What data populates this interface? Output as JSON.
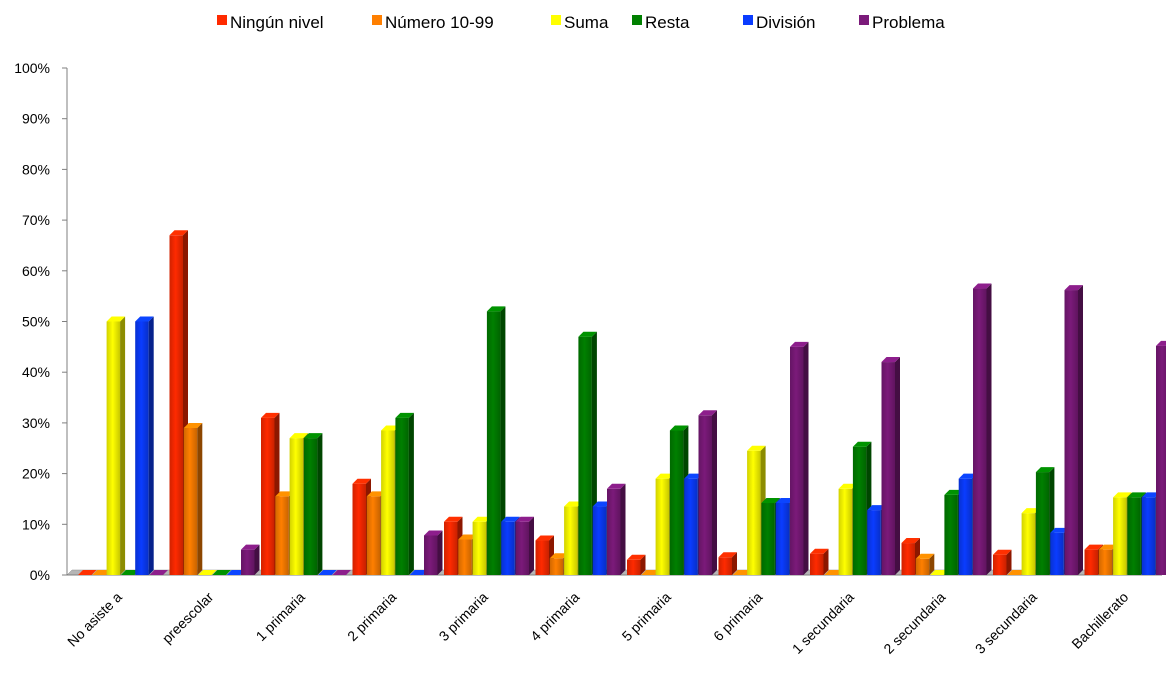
{
  "chart_data": {
    "type": "bar",
    "categories": [
      "No asiste a",
      "preescolar",
      "1 primaria",
      "2 primaria",
      "3 primaria",
      "4 primaria",
      "5 primaria",
      "6 primaria",
      "1 secundaria",
      "2 secundaria",
      "3 secundaria",
      "Bachillerato"
    ],
    "series": [
      {
        "name": "Ningún nivel",
        "color": "#ff2a00",
        "values": [
          0,
          67,
          31,
          18,
          10.5,
          6.8,
          3,
          3.5,
          4.2,
          6.3,
          4,
          5
        ]
      },
      {
        "name": "Número 10-99",
        "color": "#ff7f00",
        "values": [
          0,
          29,
          15.5,
          15.5,
          7,
          3.3,
          0,
          0,
          0,
          3.2,
          0,
          5
        ]
      },
      {
        "name": "Suma",
        "color": "#ffff00",
        "values": [
          50,
          0,
          27,
          28.5,
          10.5,
          13.5,
          19,
          24.5,
          17,
          0,
          12.2,
          15.3
        ]
      },
      {
        "name": "Resta",
        "color": "#008000",
        "values": [
          0,
          0,
          27,
          31,
          52,
          47,
          28.5,
          14.2,
          25.3,
          15.8,
          20.3,
          15.3
        ]
      },
      {
        "name": "División",
        "color": "#0a3cff",
        "values": [
          50,
          0,
          0,
          0,
          10.5,
          13.5,
          19,
          14.2,
          12.8,
          19,
          8.3,
          15.3
        ]
      },
      {
        "name": "Problema",
        "color": "#7b1a7a",
        "values": [
          0,
          5,
          0,
          7.8,
          10.5,
          17,
          31.5,
          45,
          42,
          56.5,
          56.2,
          45.2
        ]
      }
    ],
    "y_ticks": [
      "0%",
      "10%",
      "20%",
      "30%",
      "40%",
      "50%",
      "60%",
      "70%",
      "80%",
      "90%",
      "100%"
    ],
    "ylim": [
      0,
      100
    ],
    "legend_position": "top",
    "grid": false,
    "style": "3d-column"
  }
}
